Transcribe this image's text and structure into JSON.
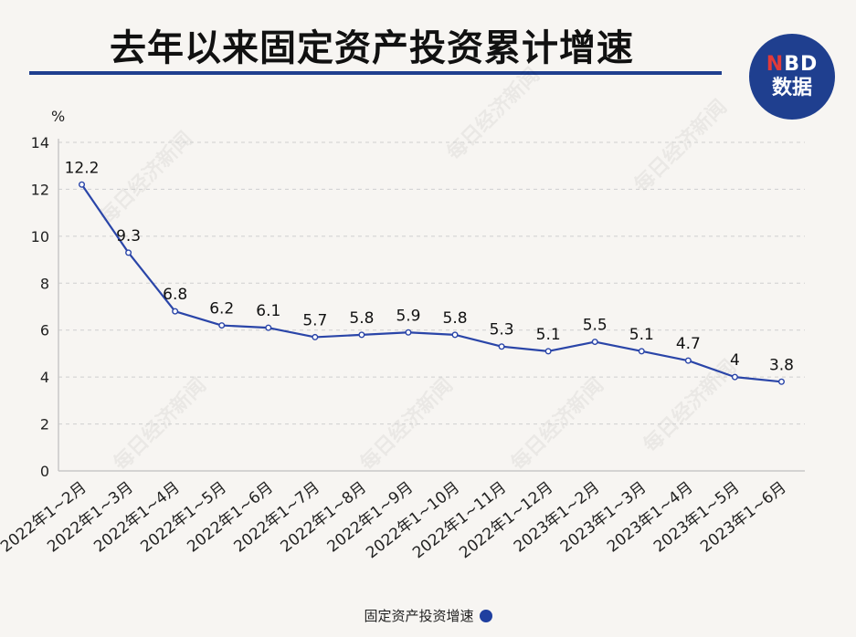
{
  "header": {
    "title": "去年以来固定资产投资累计增速",
    "logo_line1_accent": "N",
    "logo_line1_rest": "BD",
    "logo_line2": "数据",
    "watermark": "每日经济新闻"
  },
  "colors": {
    "accent": "#1f3f8f",
    "line": "#2a45a8",
    "background": "#f7f5f2"
  },
  "chart_data": {
    "type": "line",
    "title": "去年以来固定资产投资累计增速",
    "ylabel": "%",
    "xlabel": "",
    "ylim": [
      0,
      14
    ],
    "yticks": [
      0,
      2,
      4,
      6,
      8,
      10,
      12,
      14
    ],
    "grid": true,
    "legend_position": "bottom",
    "categories": [
      "2022年1~2月",
      "2022年1~3月",
      "2022年1~4月",
      "2022年1~5月",
      "2022年1~6月",
      "2022年1~7月",
      "2022年1~8月",
      "2022年1~9月",
      "2022年1~10月",
      "2022年1~11月",
      "2022年1~12月",
      "2023年1~2月",
      "2023年1~3月",
      "2023年1~4月",
      "2023年1~5月",
      "2023年1~6月"
    ],
    "series": [
      {
        "name": "固定资产投资增速",
        "values": [
          12.2,
          9.3,
          6.8,
          6.2,
          6.1,
          5.7,
          5.8,
          5.9,
          5.8,
          5.3,
          5.1,
          5.5,
          5.1,
          4.7,
          4,
          3.8
        ],
        "labels": [
          "12.2",
          "9.3",
          "6.8",
          "6.2",
          "6.1",
          "5.7",
          "5.8",
          "5.9",
          "5.8",
          "5.3",
          "5.1",
          "5.5",
          "5.1",
          "4.7",
          "4",
          "3.8"
        ]
      }
    ]
  }
}
